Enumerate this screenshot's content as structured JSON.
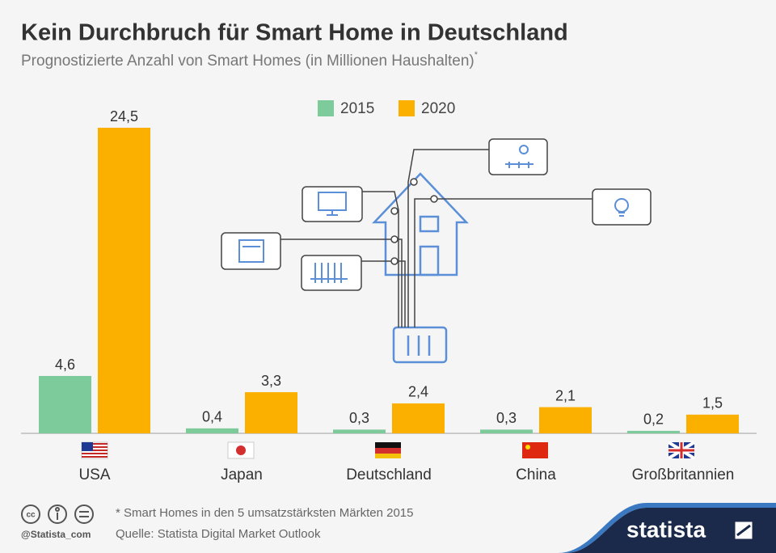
{
  "chart_data": {
    "type": "bar",
    "title": "Kein Durchbruch für Smart Home in Deutschland",
    "subtitle": "Prognostizierte Anzahl von Smart Homes (in Millionen Haushalten)",
    "subtitle_note": "*",
    "categories": [
      "USA",
      "Japan",
      "Deutschland",
      "China",
      "Großbritannien"
    ],
    "series": [
      {
        "name": "2015",
        "color": "#7dcb9a",
        "values": [
          4.6,
          0.4,
          0.3,
          0.3,
          0.2
        ],
        "value_labels": [
          "4,6",
          "0,4",
          "0,3",
          "0,3",
          "0,2"
        ]
      },
      {
        "name": "2020",
        "color": "#fbb000",
        "values": [
          24.5,
          3.3,
          2.4,
          2.1,
          1.5
        ],
        "value_labels": [
          "24,5",
          "3,3",
          "2,4",
          "2,1",
          "1,5"
        ]
      }
    ],
    "footnote": "* Smart Homes in den 5 umsatzstärksten Märkten 2015",
    "source": "Quelle: Statista Digital Market Outlook",
    "handle": "@Statista_com",
    "brand": "statista"
  }
}
